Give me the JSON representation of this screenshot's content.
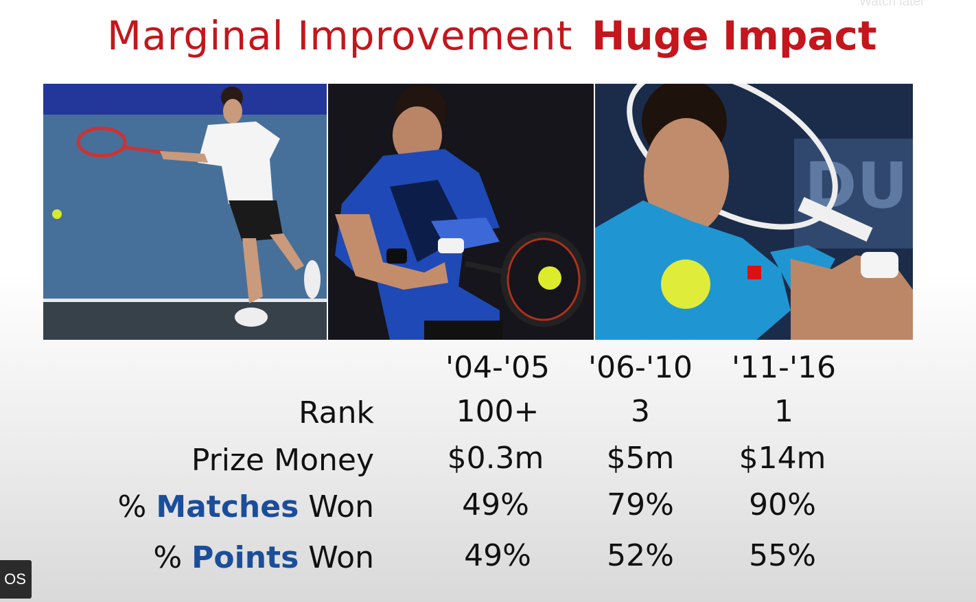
{
  "overlay": {
    "watch_later": "Watch later",
    "chip_text": "OS"
  },
  "slide": {
    "title_left": "Marginal Improvement",
    "title_right": "Huge Impact",
    "columns": [
      "'04-'05",
      "'06-'10",
      "'11-'16"
    ],
    "rows": {
      "rank": {
        "label": "Rank",
        "values": [
          "100+",
          "3",
          "1"
        ]
      },
      "prize": {
        "label": "Prize Money",
        "values": [
          "$0.3m",
          "$5m",
          "$14m"
        ]
      },
      "matches": {
        "prefix": "% ",
        "highlight": "Matches",
        "suffix": " Won",
        "values": [
          "49%",
          "79%",
          "90%"
        ]
      },
      "points": {
        "prefix": "% ",
        "highlight": "Points",
        "suffix": " Won",
        "values": [
          "49%",
          "52%",
          "55%"
        ]
      }
    },
    "colors": {
      "title_red": "#c4161c",
      "highlight_blue": "#1a4e9a"
    }
  }
}
